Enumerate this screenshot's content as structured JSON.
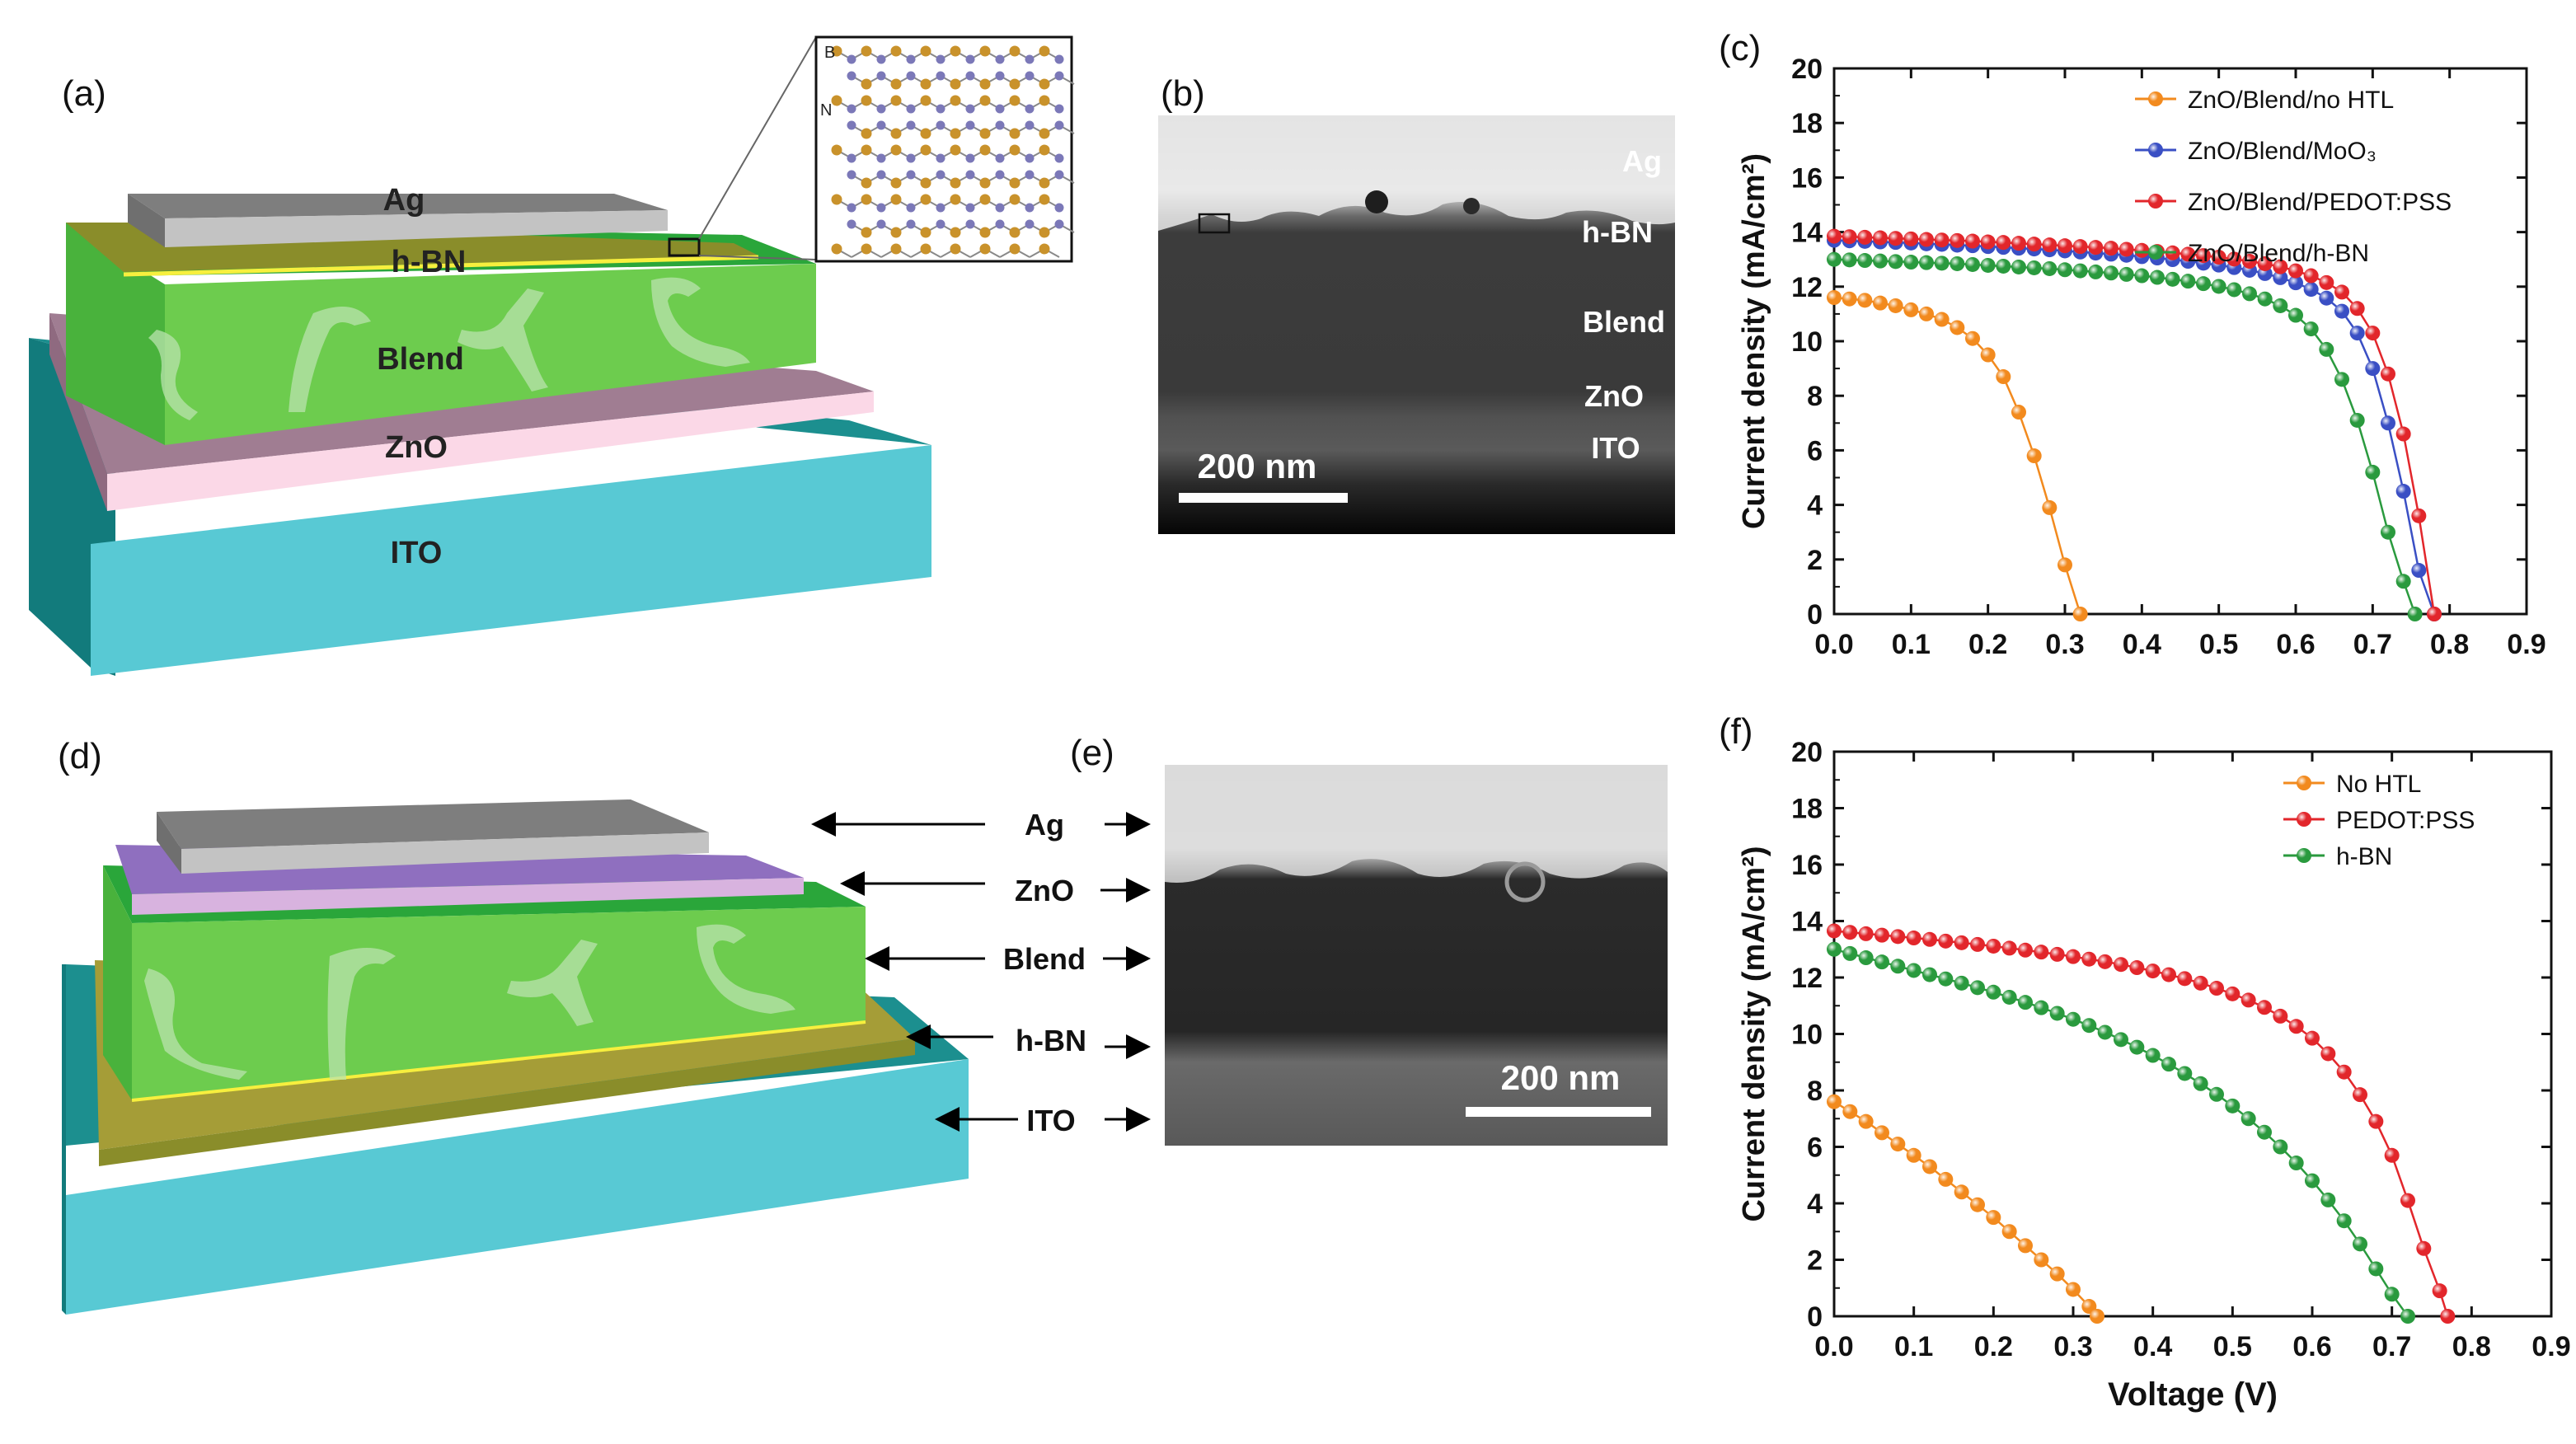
{
  "figure": {
    "panel_labels": [
      "(a)",
      "(b)",
      "(c)",
      "(d)",
      "(e)",
      "(f)"
    ]
  },
  "panel_a": {
    "layers": [
      "Ag",
      "h-BN",
      "Blend",
      "ZnO",
      "ITO"
    ],
    "inset_atoms": [
      "B",
      "N"
    ],
    "colors": {
      "ag": "#9a9a9a",
      "hbn": "#8a8d2a",
      "blend": "#6ccb4e",
      "zno": "#e7c3d6",
      "ito": "#4fcad4"
    }
  },
  "panel_b": {
    "labels": [
      "Ag",
      "h-BN",
      "Blend",
      "ZnO",
      "ITO"
    ],
    "scale_bar": "200 nm"
  },
  "panel_d": {
    "layers": [
      "Ag",
      "ZnO",
      "Blend",
      "h-BN",
      "ITO"
    ]
  },
  "panel_e": {
    "scale_bar": "200 nm"
  },
  "chart_data": [
    {
      "type": "scatter",
      "panel": "(c)",
      "xlabel": "",
      "ylabel": "Current density (mA/cm²)",
      "xlim": [
        0.0,
        0.9
      ],
      "ylim": [
        0,
        20
      ],
      "xticks": [
        "0.0",
        "0.1",
        "0.2",
        "0.3",
        "0.4",
        "0.5",
        "0.6",
        "0.7",
        "0.8",
        "0.9"
      ],
      "yticks": [
        "0",
        "2",
        "4",
        "6",
        "8",
        "10",
        "12",
        "14",
        "16",
        "18",
        "20"
      ],
      "legend_position": "top-right",
      "series": [
        {
          "name": "ZnO/Blend/no HTL",
          "color": "#f28a1e",
          "x": [
            0.0,
            0.02,
            0.04,
            0.06,
            0.08,
            0.1,
            0.12,
            0.14,
            0.16,
            0.18,
            0.2,
            0.22,
            0.24,
            0.26,
            0.28,
            0.3,
            0.32
          ],
          "y": [
            11.6,
            11.55,
            11.5,
            11.4,
            11.3,
            11.15,
            11.0,
            10.8,
            10.5,
            10.1,
            9.5,
            8.7,
            7.4,
            5.8,
            3.9,
            1.8,
            0.0
          ]
        },
        {
          "name": "ZnO/Blend/MoO₃",
          "color": "#3a4fc4",
          "x": [
            0.0,
            0.02,
            0.04,
            0.06,
            0.08,
            0.1,
            0.12,
            0.14,
            0.16,
            0.18,
            0.2,
            0.22,
            0.24,
            0.26,
            0.28,
            0.3,
            0.32,
            0.34,
            0.36,
            0.38,
            0.4,
            0.42,
            0.44,
            0.46,
            0.48,
            0.5,
            0.52,
            0.54,
            0.56,
            0.58,
            0.6,
            0.62,
            0.64,
            0.66,
            0.68,
            0.7,
            0.72,
            0.74,
            0.76,
            0.78
          ],
          "y": [
            13.7,
            13.68,
            13.66,
            13.64,
            13.62,
            13.6,
            13.57,
            13.55,
            13.52,
            13.5,
            13.47,
            13.44,
            13.41,
            13.38,
            13.35,
            13.31,
            13.27,
            13.23,
            13.19,
            13.15,
            13.1,
            13.05,
            12.99,
            12.93,
            12.86,
            12.79,
            12.7,
            12.6,
            12.48,
            12.33,
            12.14,
            11.9,
            11.58,
            11.1,
            10.3,
            9.0,
            7.0,
            4.5,
            1.6,
            0.0
          ]
        },
        {
          "name": "ZnO/Blend/PEDOT:PSS",
          "color": "#e2262b",
          "x": [
            0.0,
            0.02,
            0.04,
            0.06,
            0.08,
            0.1,
            0.12,
            0.14,
            0.16,
            0.18,
            0.2,
            0.22,
            0.24,
            0.26,
            0.28,
            0.3,
            0.32,
            0.34,
            0.36,
            0.38,
            0.4,
            0.42,
            0.44,
            0.46,
            0.48,
            0.5,
            0.52,
            0.54,
            0.56,
            0.58,
            0.6,
            0.62,
            0.64,
            0.66,
            0.68,
            0.7,
            0.72,
            0.74,
            0.76,
            0.78
          ],
          "y": [
            13.85,
            13.83,
            13.81,
            13.79,
            13.77,
            13.75,
            13.73,
            13.71,
            13.69,
            13.67,
            13.64,
            13.62,
            13.59,
            13.56,
            13.53,
            13.5,
            13.47,
            13.44,
            13.41,
            13.37,
            13.33,
            13.29,
            13.24,
            13.19,
            13.14,
            13.08,
            13.01,
            12.93,
            12.84,
            12.73,
            12.58,
            12.4,
            12.15,
            11.8,
            11.2,
            10.3,
            8.8,
            6.6,
            3.6,
            0.0
          ]
        },
        {
          "name": "ZnO/Blend/h-BN",
          "color": "#2a9a3e",
          "x": [
            0.0,
            0.02,
            0.04,
            0.06,
            0.08,
            0.1,
            0.12,
            0.14,
            0.16,
            0.18,
            0.2,
            0.22,
            0.24,
            0.26,
            0.28,
            0.3,
            0.32,
            0.34,
            0.36,
            0.38,
            0.4,
            0.42,
            0.44,
            0.46,
            0.48,
            0.5,
            0.52,
            0.54,
            0.56,
            0.58,
            0.6,
            0.62,
            0.64,
            0.66,
            0.68,
            0.7,
            0.72,
            0.74,
            0.755
          ],
          "y": [
            13.0,
            12.98,
            12.96,
            12.94,
            12.92,
            12.9,
            12.88,
            12.86,
            12.84,
            12.81,
            12.78,
            12.75,
            12.72,
            12.69,
            12.66,
            12.62,
            12.58,
            12.54,
            12.5,
            12.45,
            12.4,
            12.34,
            12.27,
            12.2,
            12.11,
            12.01,
            11.89,
            11.74,
            11.55,
            11.3,
            10.95,
            10.45,
            9.7,
            8.6,
            7.1,
            5.2,
            3.0,
            1.2,
            0.0
          ]
        }
      ]
    },
    {
      "type": "scatter",
      "panel": "(f)",
      "xlabel": "Voltage (V)",
      "ylabel": "Current density (mA/cm²)",
      "xlim": [
        0.0,
        0.9
      ],
      "ylim": [
        0,
        20
      ],
      "xticks": [
        "0.0",
        "0.1",
        "0.2",
        "0.3",
        "0.4",
        "0.5",
        "0.6",
        "0.7",
        "0.8",
        "0.9"
      ],
      "yticks": [
        "0",
        "2",
        "4",
        "6",
        "8",
        "10",
        "12",
        "14",
        "16",
        "18",
        "20"
      ],
      "legend_position": "top-right",
      "series": [
        {
          "name": "No HTL",
          "color": "#f28a1e",
          "x": [
            0.0,
            0.02,
            0.04,
            0.06,
            0.08,
            0.1,
            0.12,
            0.14,
            0.16,
            0.18,
            0.2,
            0.22,
            0.24,
            0.26,
            0.28,
            0.3,
            0.32,
            0.33
          ],
          "y": [
            7.6,
            7.25,
            6.9,
            6.5,
            6.1,
            5.7,
            5.3,
            4.85,
            4.4,
            3.95,
            3.5,
            3.0,
            2.5,
            2.0,
            1.5,
            0.95,
            0.35,
            0.0
          ]
        },
        {
          "name": "PEDOT:PSS",
          "color": "#e2262b",
          "x": [
            0.0,
            0.02,
            0.04,
            0.06,
            0.08,
            0.1,
            0.12,
            0.14,
            0.16,
            0.18,
            0.2,
            0.22,
            0.24,
            0.26,
            0.28,
            0.3,
            0.32,
            0.34,
            0.36,
            0.38,
            0.4,
            0.42,
            0.44,
            0.46,
            0.48,
            0.5,
            0.52,
            0.54,
            0.56,
            0.58,
            0.6,
            0.62,
            0.64,
            0.66,
            0.68,
            0.7,
            0.72,
            0.74,
            0.76,
            0.77
          ],
          "y": [
            13.65,
            13.6,
            13.55,
            13.5,
            13.45,
            13.4,
            13.35,
            13.29,
            13.23,
            13.17,
            13.11,
            13.04,
            12.97,
            12.9,
            12.82,
            12.74,
            12.65,
            12.56,
            12.46,
            12.35,
            12.23,
            12.1,
            11.96,
            11.8,
            11.62,
            11.42,
            11.2,
            10.94,
            10.63,
            10.27,
            9.85,
            9.3,
            8.65,
            7.85,
            6.9,
            5.7,
            4.1,
            2.4,
            0.9,
            0.0
          ]
        },
        {
          "name": "h-BN",
          "color": "#2a9a3e",
          "x": [
            0.0,
            0.02,
            0.04,
            0.06,
            0.08,
            0.1,
            0.12,
            0.14,
            0.16,
            0.18,
            0.2,
            0.22,
            0.24,
            0.26,
            0.28,
            0.3,
            0.32,
            0.34,
            0.36,
            0.38,
            0.4,
            0.42,
            0.44,
            0.46,
            0.48,
            0.5,
            0.52,
            0.54,
            0.56,
            0.58,
            0.6,
            0.62,
            0.64,
            0.66,
            0.68,
            0.7,
            0.72
          ],
          "y": [
            13.0,
            12.85,
            12.7,
            12.55,
            12.4,
            12.25,
            12.1,
            11.95,
            11.8,
            11.64,
            11.48,
            11.3,
            11.12,
            10.93,
            10.73,
            10.52,
            10.3,
            10.06,
            9.8,
            9.53,
            9.24,
            8.93,
            8.6,
            8.24,
            7.86,
            7.45,
            7.0,
            6.52,
            6.0,
            5.43,
            4.8,
            4.12,
            3.38,
            2.56,
            1.68,
            0.78,
            0.0
          ]
        }
      ]
    }
  ]
}
